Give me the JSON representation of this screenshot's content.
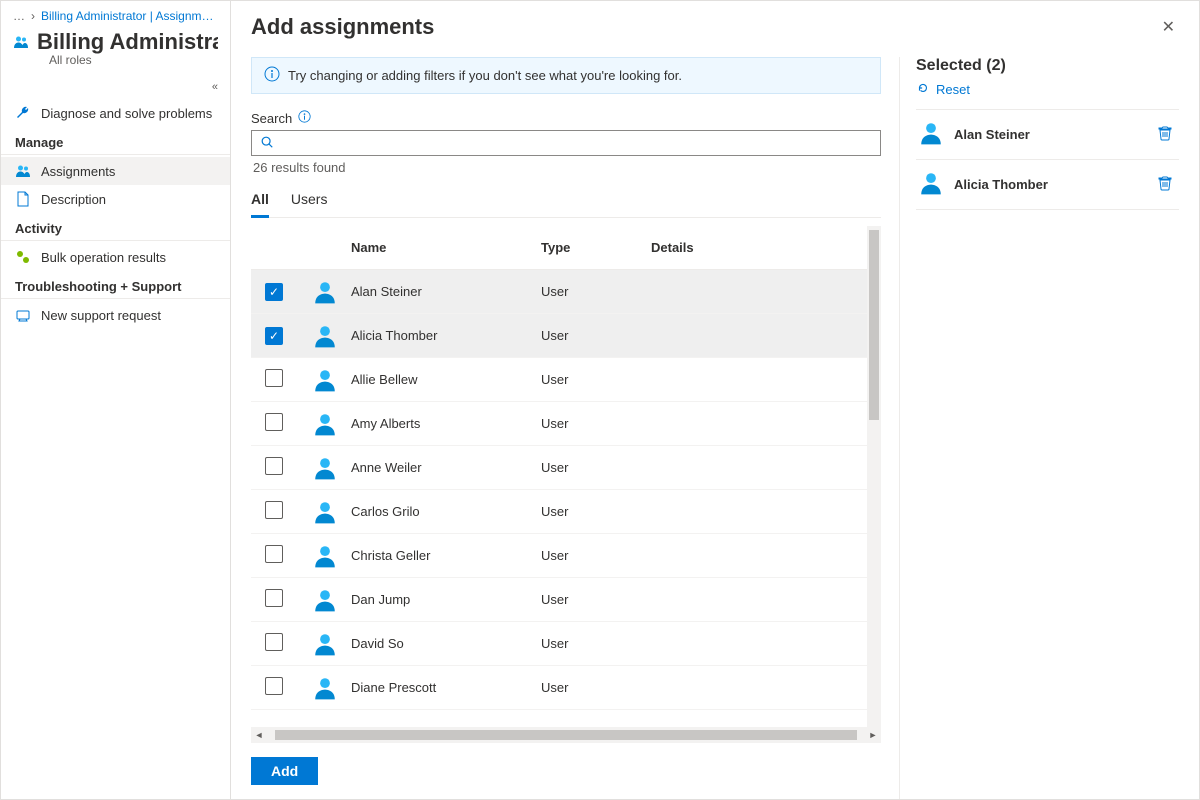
{
  "colors": {
    "accent": "#0078d4",
    "text": "#323130",
    "text_muted": "#605e5c",
    "border": "#e1dfdd",
    "info_bg": "#eef8ff",
    "info_border": "#d0e7f8",
    "row_selected_bg": "#efefef",
    "avatar_head": "#29b6f6",
    "avatar_body": "#0288d1"
  },
  "breadcrumb": {
    "ellipsis": "…",
    "sep": "›",
    "link": "Billing Administrator | Assignments"
  },
  "page": {
    "title": "Billing Administrator",
    "subtitle": "All roles",
    "collapse_glyph": "«"
  },
  "sidebar": {
    "diagnose": "Diagnose and solve problems",
    "section_manage": "Manage",
    "assignments": "Assignments",
    "description": "Description",
    "section_activity": "Activity",
    "bulk": "Bulk operation results",
    "section_troubleshoot": "Troubleshooting + Support",
    "support": "New support request"
  },
  "panel": {
    "title": "Add assignments",
    "info_msg": "Try changing or adding filters if you don't see what you're looking for.",
    "search_label": "Search",
    "search_value": "",
    "results_count": "26 results found",
    "tabs": {
      "all": "All",
      "users": "Users"
    },
    "columns": {
      "name": "Name",
      "type": "Type",
      "details": "Details"
    },
    "rows": [
      {
        "name": "Alan Steiner",
        "type": "User",
        "details": "",
        "checked": true
      },
      {
        "name": "Alicia Thomber",
        "type": "User",
        "details": "",
        "checked": true
      },
      {
        "name": "Allie Bellew",
        "type": "User",
        "details": "",
        "checked": false
      },
      {
        "name": "Amy Alberts",
        "type": "User",
        "details": "",
        "checked": false
      },
      {
        "name": "Anne Weiler",
        "type": "User",
        "details": "",
        "checked": false
      },
      {
        "name": "Carlos Grilo",
        "type": "User",
        "details": "",
        "checked": false
      },
      {
        "name": "Christa Geller",
        "type": "User",
        "details": "",
        "checked": false
      },
      {
        "name": "Dan Jump",
        "type": "User",
        "details": "",
        "checked": false
      },
      {
        "name": "David So",
        "type": "User",
        "details": "",
        "checked": false
      },
      {
        "name": "Diane Prescott",
        "type": "User",
        "details": "",
        "checked": false
      }
    ],
    "add_label": "Add"
  },
  "selected": {
    "title": "Selected (2)",
    "reset": "Reset",
    "items": [
      {
        "name": "Alan Steiner"
      },
      {
        "name": "Alicia Thomber"
      }
    ]
  }
}
